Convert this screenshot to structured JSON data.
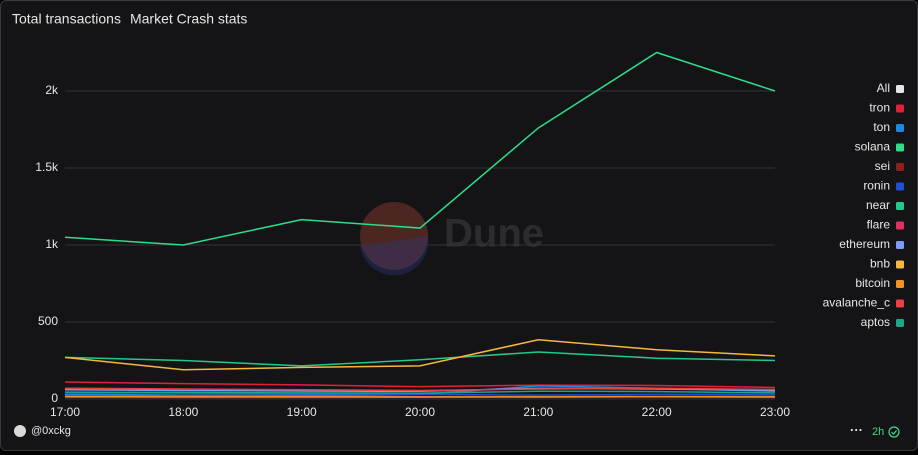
{
  "chart_data": {
    "type": "line",
    "title": "Total transactions",
    "subtitle": "Market Crash stats",
    "watermark": "Dune",
    "author": "@0xckg",
    "refresh": "2h",
    "legend_toggle": "All",
    "categories": [
      "17:00",
      "18:00",
      "19:00",
      "20:00",
      "21:00",
      "22:00",
      "23:00"
    ],
    "ylim": [
      0,
      2250
    ],
    "yticks": [
      0,
      500,
      {
        "value": 1000,
        "label": "1k"
      },
      {
        "value": 1500,
        "label": "1.5k"
      },
      {
        "value": 2000,
        "label": "2k"
      }
    ],
    "grid": true,
    "legend": "right",
    "series": [
      {
        "name": "tron",
        "color": "#e0213d",
        "values": [
          110,
          100,
          92,
          80,
          90,
          88,
          75
        ]
      },
      {
        "name": "ton",
        "color": "#1e88e5",
        "values": [
          30,
          25,
          25,
          30,
          85,
          70,
          50
        ]
      },
      {
        "name": "solana",
        "color": "#2edc8a",
        "values": [
          1050,
          1000,
          1165,
          1110,
          1760,
          2250,
          2000
        ]
      },
      {
        "name": "sei",
        "color": "#8b1e1e",
        "values": [
          12,
          10,
          10,
          12,
          15,
          18,
          20
        ]
      },
      {
        "name": "ronin",
        "color": "#1f4fd6",
        "values": [
          40,
          38,
          35,
          30,
          25,
          30,
          28
        ]
      },
      {
        "name": "near",
        "color": "#22c98a",
        "values": [
          270,
          250,
          215,
          255,
          305,
          265,
          250
        ]
      },
      {
        "name": "flare",
        "color": "#e0305e",
        "values": [
          20,
          18,
          18,
          15,
          12,
          15,
          12
        ]
      },
      {
        "name": "ethereum",
        "color": "#7f9cf5",
        "values": [
          60,
          55,
          52,
          50,
          70,
          65,
          55
        ]
      },
      {
        "name": "bnb",
        "color": "#f5b83d",
        "values": [
          270,
          190,
          205,
          215,
          385,
          320,
          280
        ]
      },
      {
        "name": "bitcoin",
        "color": "#f39222",
        "values": [
          15,
          14,
          14,
          13,
          14,
          15,
          14
        ]
      },
      {
        "name": "avalanche_c",
        "color": "#e84142",
        "values": [
          70,
          65,
          60,
          55,
          65,
          70,
          62
        ]
      },
      {
        "name": "aptos",
        "color": "#1aa78a",
        "values": [
          45,
          42,
          40,
          38,
          50,
          48,
          40
        ]
      }
    ]
  }
}
